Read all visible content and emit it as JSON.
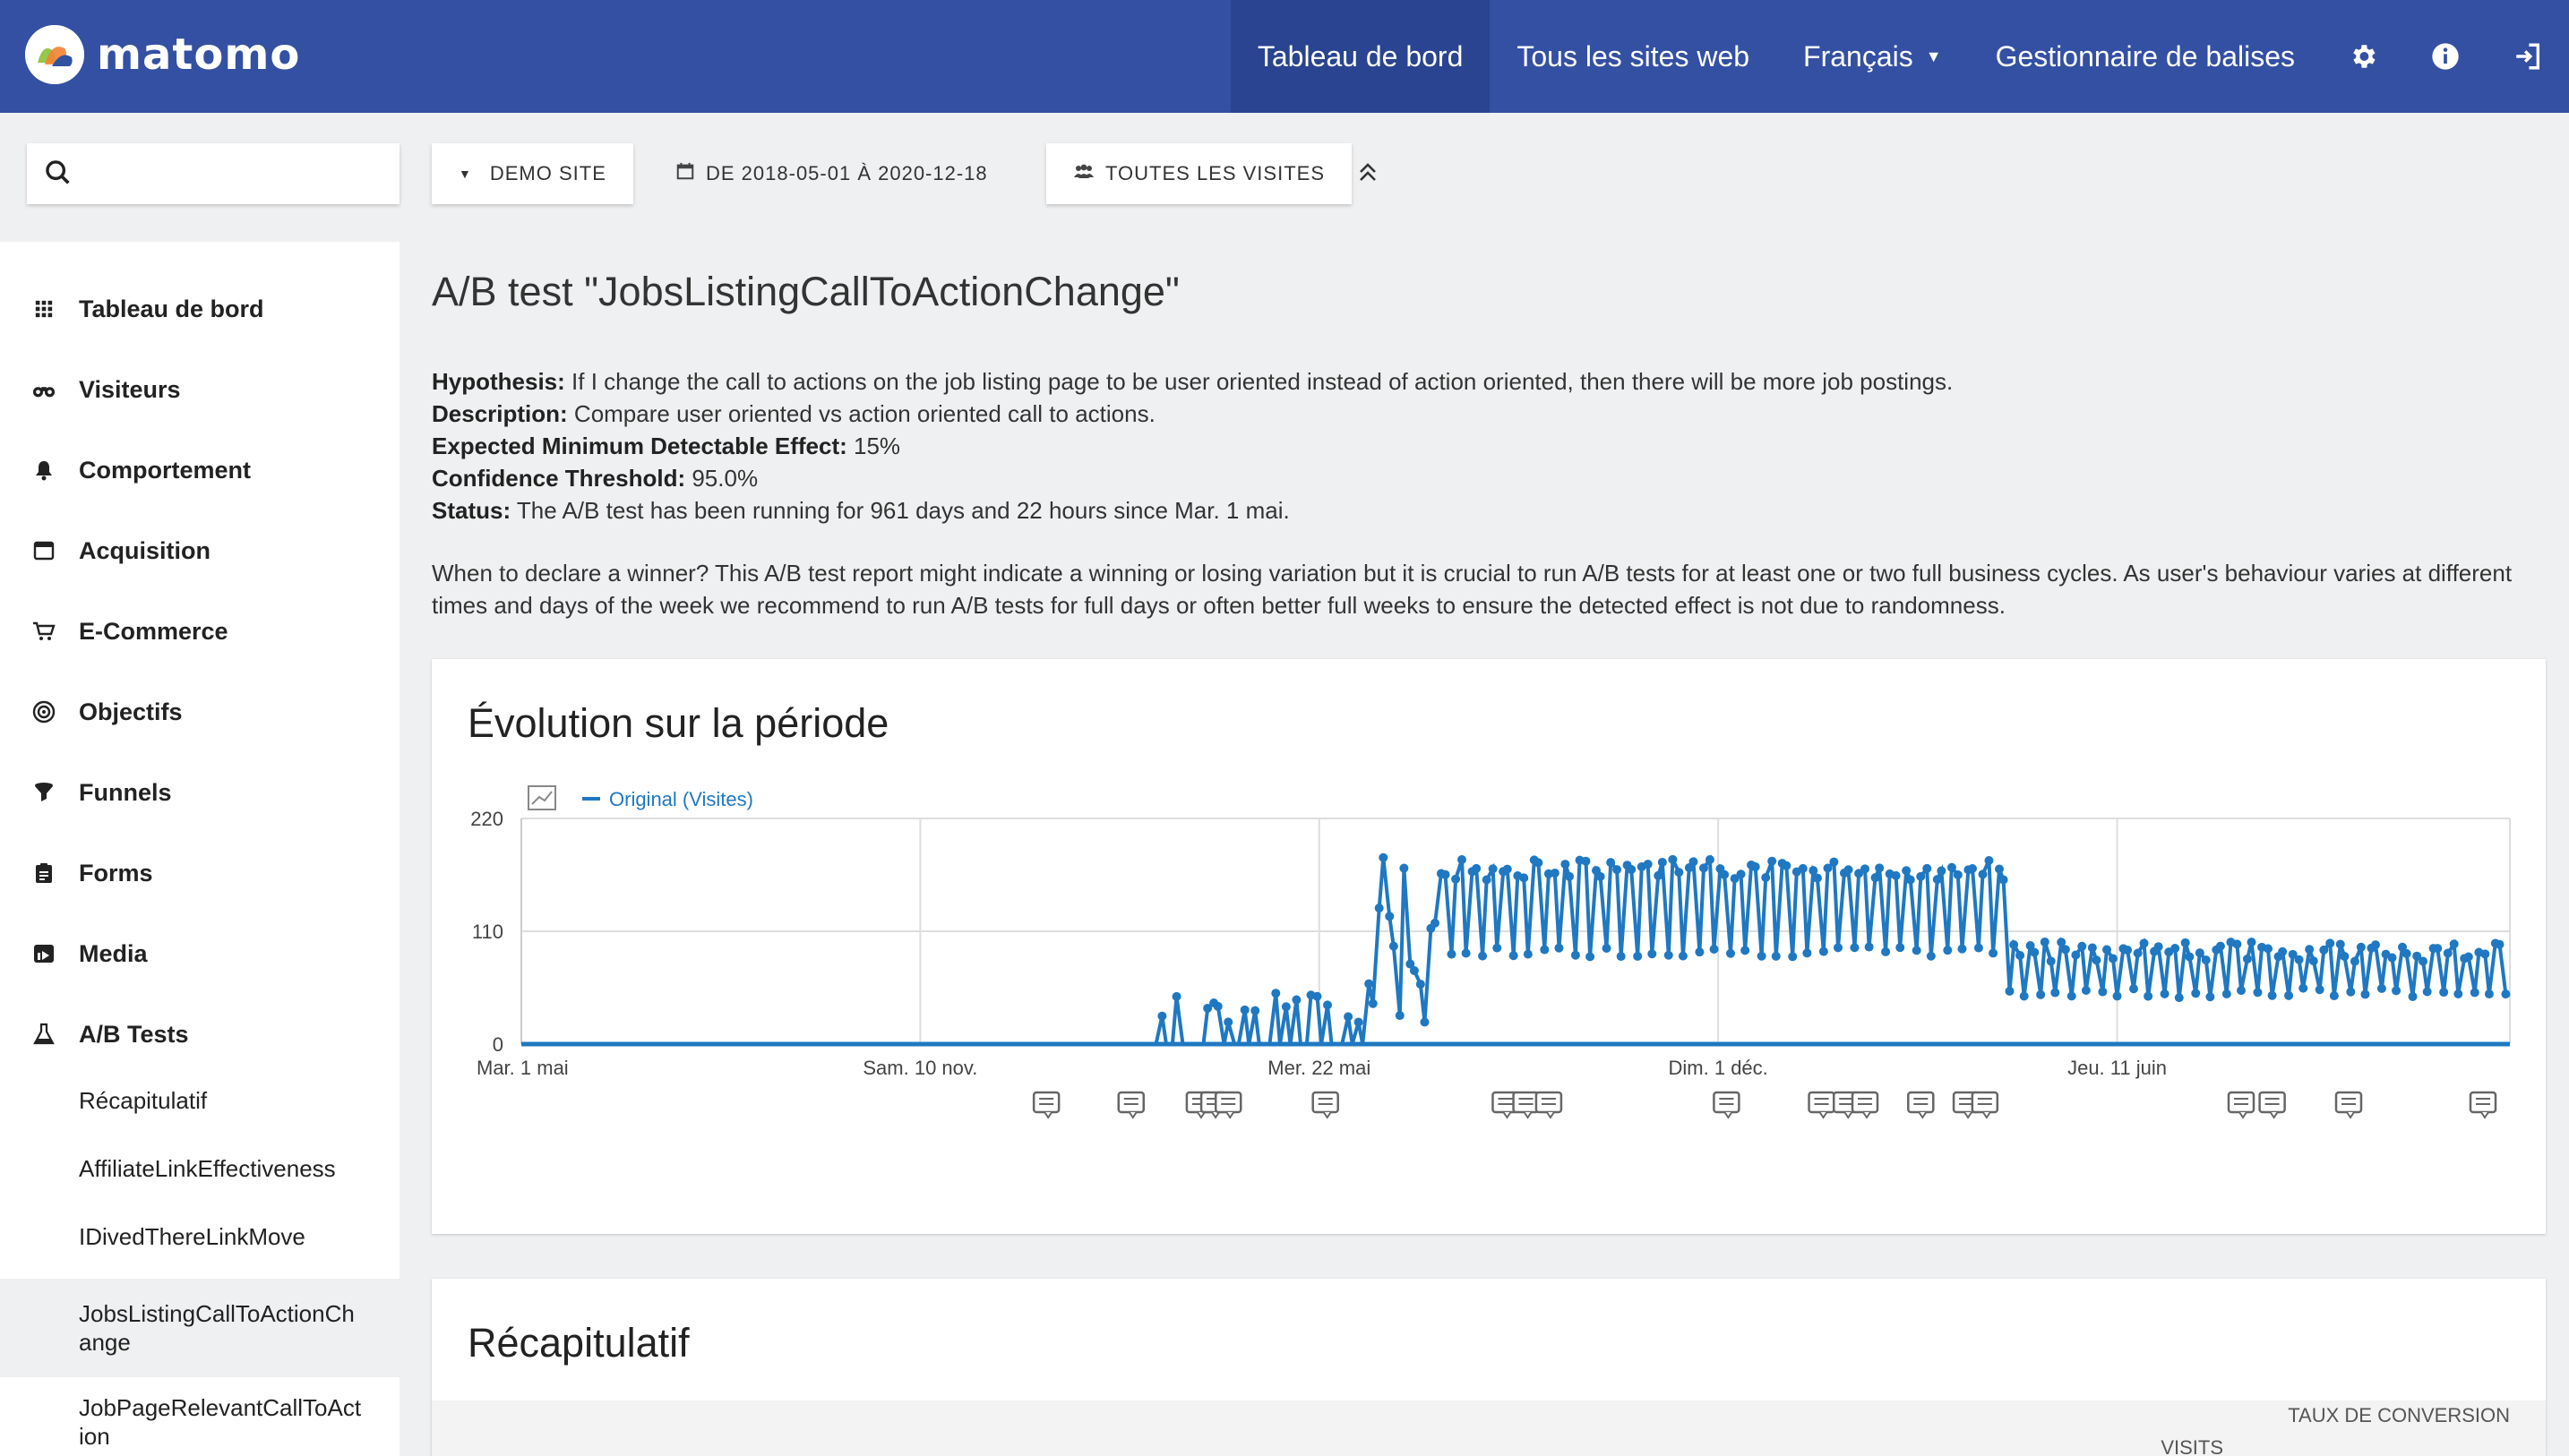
{
  "header": {
    "logo_text": "matomo",
    "nav": [
      {
        "label": "Tableau de bord",
        "active": true
      },
      {
        "label": "Tous les sites web"
      },
      {
        "label": "Français"
      },
      {
        "label": "Gestionnaire de balises"
      }
    ],
    "icons": [
      "gear-icon",
      "info-icon",
      "logout-icon"
    ]
  },
  "toolbar": {
    "site_label": "DEMO SITE",
    "date_label": "DE 2018-05-01 À 2020-12-18",
    "segment_label": "TOUTES LES VISITES"
  },
  "sidebar": {
    "items": [
      {
        "label": "Tableau de bord",
        "icon": "grid-icon"
      },
      {
        "label": "Visiteurs",
        "icon": "binoculars-icon"
      },
      {
        "label": "Comportement",
        "icon": "bell-icon"
      },
      {
        "label": "Acquisition",
        "icon": "window-icon"
      },
      {
        "label": "E-Commerce",
        "icon": "cart-icon"
      },
      {
        "label": "Objectifs",
        "icon": "target-icon"
      },
      {
        "label": "Funnels",
        "icon": "funnel-icon"
      },
      {
        "label": "Forms",
        "icon": "clipboard-icon"
      },
      {
        "label": "Media",
        "icon": "media-icon"
      },
      {
        "label": "A/B Tests",
        "icon": "flask-icon"
      }
    ],
    "subitems": [
      {
        "label": "Récapitulatif"
      },
      {
        "label": "AffiliateLinkEffectiveness"
      },
      {
        "label": "IDivedThereLinkMove"
      },
      {
        "label": "JobsListingCallToActionChange",
        "selected": true
      },
      {
        "label": "JobPageRelevantCallToAction"
      }
    ]
  },
  "main": {
    "title": "A/B test \"JobsListingCallToActionChange\"",
    "info": [
      {
        "key": "Hypothesis:",
        "value": " If I change the call to actions on the job listing page to be user oriented instead of action oriented, then there will be more job postings."
      },
      {
        "key": "Description:",
        "value": " Compare user oriented vs action oriented call to actions."
      },
      {
        "key": "Expected Minimum Detectable Effect:",
        "value": " 15%"
      },
      {
        "key": "Confidence Threshold:",
        "value": " 95.0%"
      },
      {
        "key": "Status:",
        "value": " The A/B test has been running for 961 days and 22 hours since Mar. 1 mai."
      }
    ],
    "winner_text": "When to declare a winner? This A/B test report might indicate a winning or losing variation but it is crucial to run A/B tests for at least one or two full business cycles. As user's behaviour varies at different times and days of the week we recommend to run A/B tests for full days or often better full weeks to ensure the detected effect is not due to randomness."
  },
  "evolution": {
    "title": "Évolution sur la période"
  },
  "recap": {
    "title": "Récapitulatif",
    "columns": [
      "VISITS",
      "TAUX DE CONVERSION"
    ]
  },
  "chart_data": {
    "type": "line",
    "series": [
      {
        "name": "Original (Visites)",
        "color": "#1f78c1"
      }
    ],
    "yticks": [
      220,
      110,
      0
    ],
    "ylim": [
      0,
      220
    ],
    "xlim": [
      "2018-05-01",
      "2020-12-18"
    ],
    "xticks": [
      {
        "label": "Mar. 1 mai",
        "date": "2018-05-01"
      },
      {
        "label": "Sam. 10 nov.",
        "date": "2018-11-10"
      },
      {
        "label": "Mer. 22 mai",
        "date": "2019-05-22"
      },
      {
        "label": "Dim. 1 déc.",
        "date": "2019-12-01"
      },
      {
        "label": "Jeu. 11 juin",
        "date": "2020-06-11"
      }
    ],
    "phases": [
      {
        "from": "2018-05-01",
        "to": "2019-03-01",
        "low": 0,
        "high": 0
      },
      {
        "from": "2019-03-01",
        "to": "2019-06-15",
        "low": 0,
        "high": 50
      },
      {
        "from": "2019-06-15",
        "to": "2019-07-20",
        "low": 0,
        "high": 205
      },
      {
        "from": "2019-07-20",
        "to": "2020-04-20",
        "low": 85,
        "high": 180
      },
      {
        "from": "2020-04-20",
        "to": "2020-12-18",
        "low": 45,
        "high": 100
      }
    ],
    "annotations": [
      "2019-01-10",
      "2019-02-20",
      "2019-03-25",
      "2019-04-01",
      "2019-04-08",
      "2019-05-25",
      "2019-08-20",
      "2019-08-30",
      "2019-09-10",
      "2019-12-05",
      "2020-01-20",
      "2020-02-01",
      "2020-02-10",
      "2020-03-08",
      "2020-03-30",
      "2020-04-08",
      "2020-08-10",
      "2020-08-25",
      "2020-10-01",
      "2020-12-05"
    ]
  }
}
